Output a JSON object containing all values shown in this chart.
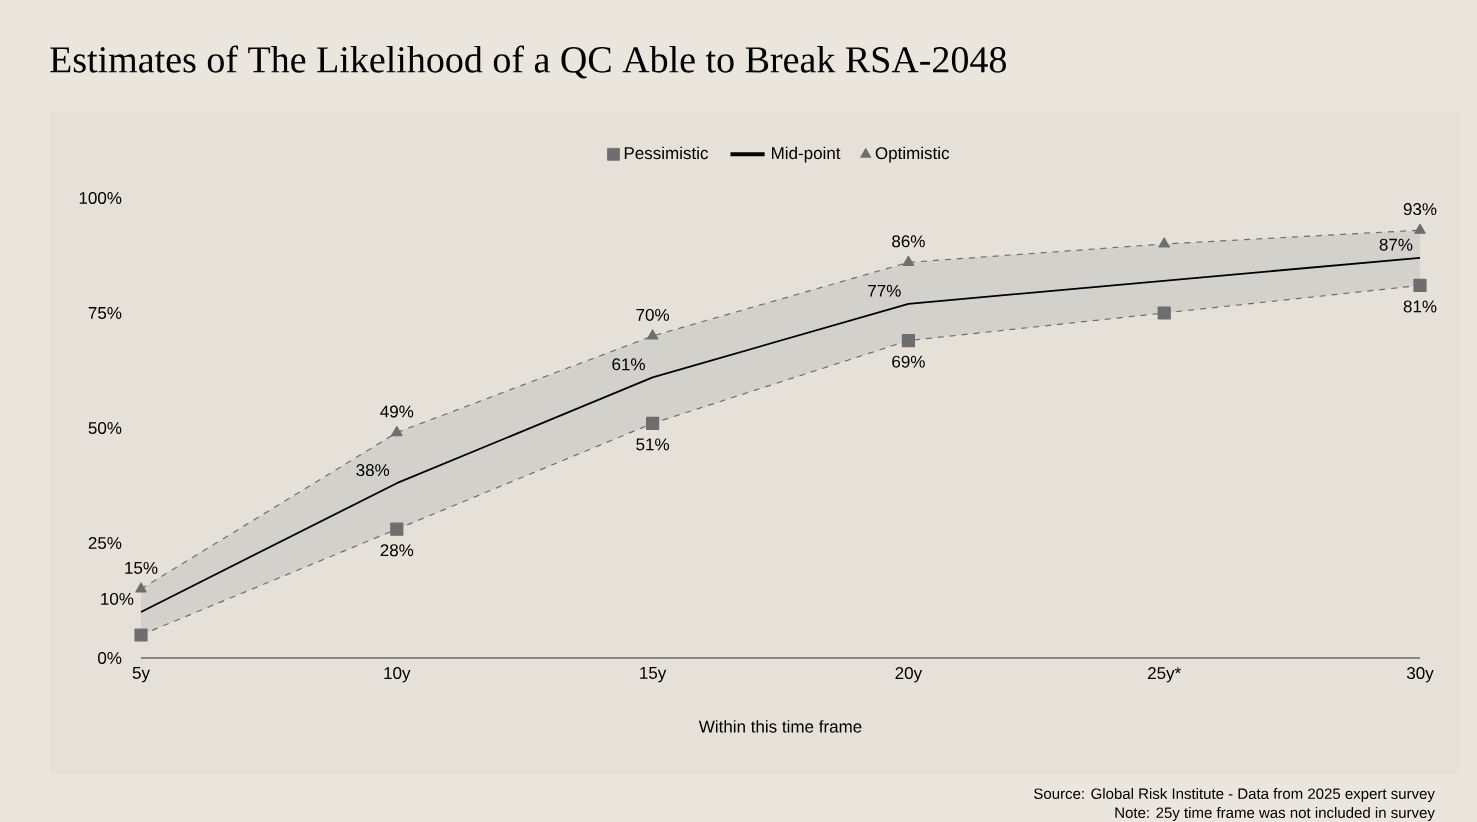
{
  "chart_data": {
    "type": "line",
    "title": "Estimates of The Likelihood of a QC Able to Break RSA-2048",
    "xlabel": "Within this time frame",
    "categories": [
      "5y",
      "10y",
      "15y",
      "20y",
      "25y*",
      "30y"
    ],
    "series": [
      {
        "name": "Pessimistic",
        "color": "#6e6e6e",
        "marker": "square",
        "line_style": "dashed",
        "values": [
          5,
          28,
          51,
          69,
          75,
          81
        ],
        "value_labels": [
          null,
          "28%",
          "51%",
          "69%",
          null,
          "81%"
        ]
      },
      {
        "name": "Mid-point",
        "color": "#000000",
        "marker": "none",
        "line_style": "solid",
        "values": [
          10,
          38,
          61,
          77,
          82,
          87
        ],
        "value_labels": [
          "10%",
          "38%",
          "61%",
          "77%",
          null,
          "87%"
        ],
        "lower": [
          5,
          28,
          51,
          69,
          75,
          81
        ],
        "upper": [
          15,
          49,
          70,
          86,
          90,
          93
        ]
      },
      {
        "name": "Optimistic",
        "color": "#6e6e6e",
        "marker": "triangle",
        "line_style": "dashed",
        "values": [
          15,
          49,
          70,
          86,
          90,
          93
        ],
        "value_labels": [
          "15%",
          "49%",
          "70%",
          "86%",
          null,
          "93%"
        ]
      }
    ],
    "ylim": [
      0,
      100
    ],
    "yticks": [
      {
        "value": 0,
        "label": "0%"
      },
      {
        "value": 25,
        "label": "25%"
      },
      {
        "value": 50,
        "label": "50%"
      },
      {
        "value": 75,
        "label": "75%"
      },
      {
        "value": 100,
        "label": "100%"
      }
    ],
    "legend": "top",
    "annotations": [
      "Source: Global Risk Institute  - Data from 2025 expert survey",
      "Note: 25y time frame was not included in survey"
    ]
  }
}
